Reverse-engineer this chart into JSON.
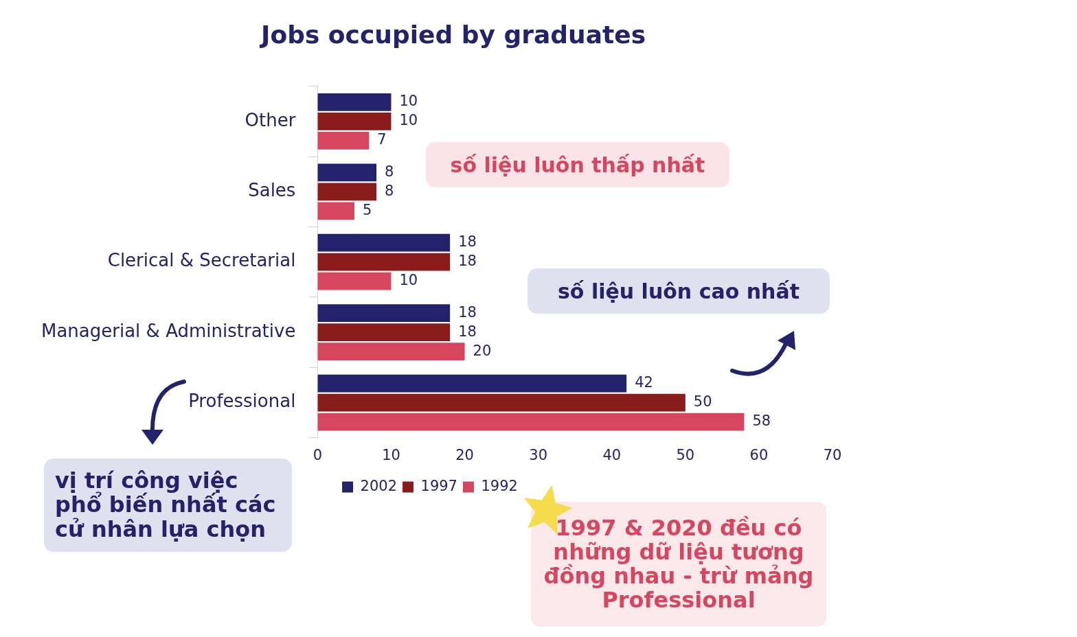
{
  "chart_data": {
    "type": "bar",
    "orientation": "horizontal",
    "title": "Jobs occupied by graduates",
    "categories": [
      "Other",
      "Sales",
      "Clerical & Secretarial",
      "Managerial & Administrative",
      "Professional"
    ],
    "series": [
      {
        "name": "2002",
        "color": "#23236b",
        "values": [
          10,
          8,
          18,
          18,
          42
        ]
      },
      {
        "name": "1997",
        "color": "#8b1c1c",
        "values": [
          10,
          8,
          18,
          18,
          50
        ]
      },
      {
        "name": "1992",
        "color": "#d6475f",
        "values": [
          7,
          5,
          10,
          20,
          58
        ]
      }
    ],
    "xlim": [
      0,
      70
    ],
    "xticks": [
      0,
      10,
      20,
      30,
      40,
      50,
      60,
      70
    ],
    "grid": false,
    "legend": "bottom",
    "data_labels": true,
    "annotations": [
      "số liệu luôn thấp nhất",
      "số liệu luôn cao nhất",
      "vị trí công việc phổ biến nhất các cử nhân lựa chọn",
      "1997 & 2020 đều có những dữ liệu tương đồng nhau - trừ mảng Professional"
    ]
  }
}
